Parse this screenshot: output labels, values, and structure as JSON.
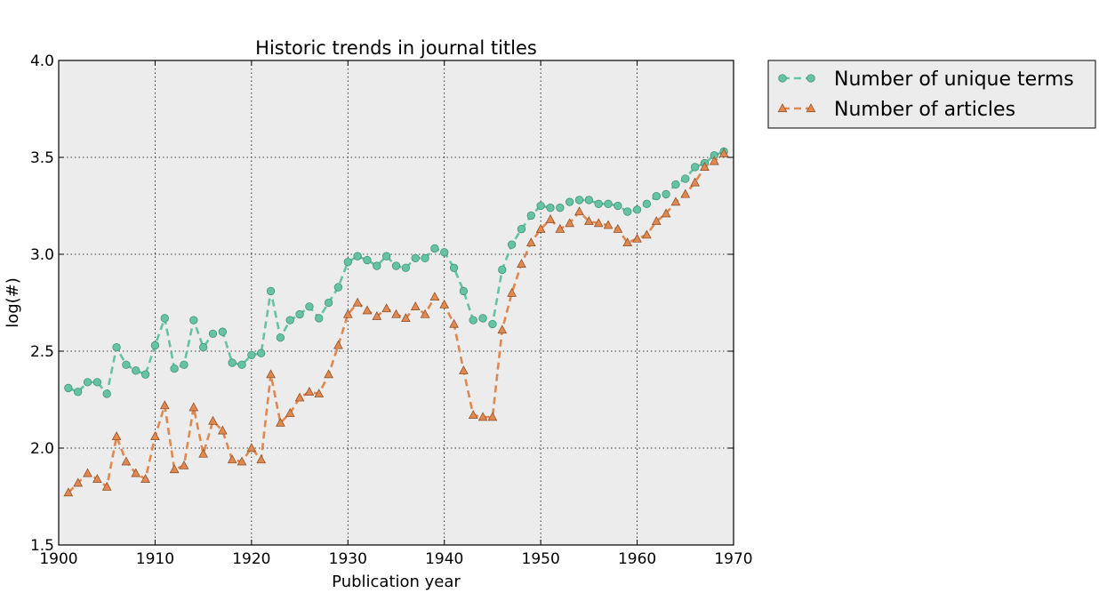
{
  "chart_data": {
    "type": "line",
    "title": "Historic trends in journal titles",
    "xlabel": "Publication year",
    "ylabel": "log(#)",
    "xlim": [
      1900,
      1970
    ],
    "ylim": [
      1.5,
      4.0
    ],
    "xticks": [
      1900,
      1910,
      1920,
      1930,
      1940,
      1950,
      1960,
      1970
    ],
    "yticks": [
      1.5,
      2.0,
      2.5,
      3.0,
      3.5,
      4.0
    ],
    "xtick_labels": [
      "1900",
      "1910",
      "1920",
      "1930",
      "1940",
      "1950",
      "1960",
      "1970"
    ],
    "ytick_labels": [
      "1.5",
      "2.0",
      "2.5",
      "3.0",
      "3.5",
      "4.0"
    ],
    "grid": true,
    "legend_position": "outside-top-right",
    "background_color": "#ececec",
    "x": [
      1901,
      1902,
      1903,
      1904,
      1905,
      1906,
      1907,
      1908,
      1909,
      1910,
      1911,
      1912,
      1913,
      1914,
      1915,
      1916,
      1917,
      1918,
      1919,
      1920,
      1921,
      1922,
      1923,
      1924,
      1925,
      1926,
      1927,
      1928,
      1929,
      1930,
      1931,
      1932,
      1933,
      1934,
      1935,
      1936,
      1937,
      1938,
      1939,
      1940,
      1941,
      1942,
      1943,
      1944,
      1945,
      1946,
      1947,
      1948,
      1949,
      1950,
      1951,
      1952,
      1953,
      1954,
      1955,
      1956,
      1957,
      1958,
      1959,
      1960,
      1961,
      1962,
      1963,
      1964,
      1965,
      1966,
      1967,
      1968,
      1969
    ],
    "series": [
      {
        "name": "Number of unique terms",
        "marker": "circle",
        "color": "#66c2a5",
        "edge_color": "#3a8e6e",
        "values": [
          2.31,
          2.29,
          2.34,
          2.34,
          2.28,
          2.52,
          2.43,
          2.4,
          2.38,
          2.53,
          2.67,
          2.41,
          2.43,
          2.66,
          2.52,
          2.59,
          2.6,
          2.44,
          2.43,
          2.48,
          2.49,
          2.81,
          2.57,
          2.66,
          2.69,
          2.73,
          2.67,
          2.75,
          2.83,
          2.96,
          2.99,
          2.97,
          2.94,
          2.99,
          2.94,
          2.93,
          2.98,
          2.98,
          3.03,
          3.01,
          2.93,
          2.81,
          2.66,
          2.67,
          2.64,
          2.92,
          3.05,
          3.13,
          3.2,
          3.25,
          3.24,
          3.24,
          3.27,
          3.28,
          3.28,
          3.26,
          3.26,
          3.25,
          3.22,
          3.23,
          3.26,
          3.3,
          3.31,
          3.36,
          3.39,
          3.45,
          3.47,
          3.51,
          3.53
        ]
      },
      {
        "name": "Number of articles",
        "marker": "triangle",
        "color": "#e08850",
        "edge_color": "#8a4a20",
        "values": [
          1.77,
          1.82,
          1.87,
          1.84,
          1.8,
          2.06,
          1.93,
          1.87,
          1.84,
          2.06,
          2.22,
          1.89,
          1.91,
          2.21,
          1.97,
          2.14,
          2.09,
          1.94,
          1.93,
          2.0,
          1.94,
          2.38,
          2.13,
          2.18,
          2.26,
          2.29,
          2.28,
          2.38,
          2.53,
          2.69,
          2.75,
          2.71,
          2.68,
          2.72,
          2.69,
          2.67,
          2.73,
          2.69,
          2.78,
          2.74,
          2.64,
          2.4,
          2.17,
          2.16,
          2.16,
          2.61,
          2.8,
          2.95,
          3.06,
          3.13,
          3.18,
          3.13,
          3.16,
          3.22,
          3.17,
          3.16,
          3.15,
          3.13,
          3.06,
          3.08,
          3.1,
          3.17,
          3.21,
          3.27,
          3.31,
          3.37,
          3.45,
          3.48,
          3.52
        ]
      }
    ]
  }
}
